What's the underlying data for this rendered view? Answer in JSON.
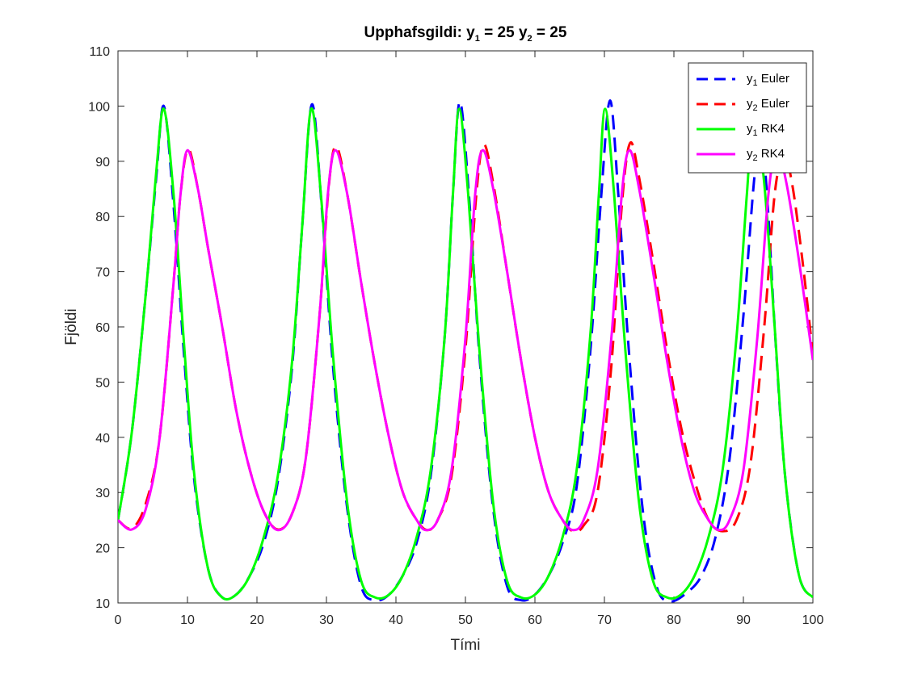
{
  "chart_data": {
    "type": "line",
    "title": "Upphafsgildi: y₁ = 25 y₂ = 25",
    "title_parts": [
      "Upphafsgildi: y",
      "1",
      " = 25 y",
      "2",
      " = 25"
    ],
    "xlabel": "Tími",
    "ylabel": "Fjöldi",
    "xlim": [
      0,
      100
    ],
    "ylim": [
      10,
      110
    ],
    "xticks": [
      0,
      10,
      20,
      30,
      40,
      50,
      60,
      70,
      80,
      90,
      100
    ],
    "yticks": [
      10,
      20,
      30,
      40,
      50,
      60,
      70,
      80,
      90,
      100,
      110
    ],
    "grid": false,
    "legend_position": "top-right",
    "series": [
      {
        "name": "y1 Euler",
        "legend_main": "y",
        "legend_sub": "1",
        "legend_tail": " Euler",
        "color": "#0000ff",
        "style": "dashed",
        "points": [
          [
            0,
            25
          ],
          [
            2,
            41
          ],
          [
            4,
            66
          ],
          [
            5.5,
            87
          ],
          [
            6.6,
            100
          ],
          [
            8,
            82
          ],
          [
            9.5,
            55
          ],
          [
            11,
            32
          ],
          [
            13,
            16
          ],
          [
            15,
            11
          ],
          [
            17,
            11.5
          ],
          [
            19,
            15
          ],
          [
            21,
            21
          ],
          [
            23,
            32
          ],
          [
            25,
            52
          ],
          [
            26.5,
            78
          ],
          [
            27.9,
            100.3
          ],
          [
            29.3,
            82
          ],
          [
            31,
            52
          ],
          [
            33,
            27
          ],
          [
            35,
            13
          ],
          [
            37,
            10.5
          ],
          [
            39,
            11.5
          ],
          [
            41,
            15
          ],
          [
            43,
            21
          ],
          [
            45,
            33
          ],
          [
            47,
            58
          ],
          [
            48.2,
            84
          ],
          [
            49.2,
            100.8
          ],
          [
            50.5,
            84
          ],
          [
            52,
            55
          ],
          [
            54,
            27
          ],
          [
            56,
            13
          ],
          [
            58,
            10.5
          ],
          [
            60,
            11.5
          ],
          [
            62,
            15
          ],
          [
            64,
            21
          ],
          [
            66,
            31
          ],
          [
            68,
            56
          ],
          [
            69.5,
            83
          ],
          [
            70.8,
            101
          ],
          [
            72,
            84
          ],
          [
            73.5,
            56
          ],
          [
            75.5,
            27
          ],
          [
            77.5,
            13
          ],
          [
            79.5,
            10.3
          ],
          [
            82,
            12
          ],
          [
            84,
            15
          ],
          [
            86,
            22
          ],
          [
            88,
            36
          ],
          [
            90,
            62
          ],
          [
            91.5,
            86
          ],
          [
            92.5,
            96
          ],
          [
            93.5,
            82
          ],
          [
            94.5,
            60
          ],
          [
            96,
            33
          ],
          [
            98,
            15
          ],
          [
            100,
            11
          ]
        ]
      },
      {
        "name": "y2 Euler",
        "legend_main": "y",
        "legend_sub": "2",
        "legend_tail": " Euler",
        "color": "#ff0000",
        "style": "dashed",
        "points": [
          [
            0,
            25
          ],
          [
            2,
            23.5
          ],
          [
            4,
            28
          ],
          [
            6,
            40
          ],
          [
            8,
            68
          ],
          [
            9,
            84
          ],
          [
            10.1,
            92.2
          ],
          [
            11.5,
            85
          ],
          [
            13,
            74
          ],
          [
            15,
            60
          ],
          [
            17,
            45
          ],
          [
            19,
            34
          ],
          [
            21,
            26.5
          ],
          [
            23,
            23.3
          ],
          [
            25,
            26
          ],
          [
            27,
            36
          ],
          [
            29,
            62
          ],
          [
            30.3,
            85
          ],
          [
            31.4,
            92.7
          ],
          [
            33,
            84
          ],
          [
            35,
            68
          ],
          [
            37,
            53
          ],
          [
            39,
            40
          ],
          [
            41,
            30
          ],
          [
            43,
            25
          ],
          [
            44.5,
            23.2
          ],
          [
            46,
            25
          ],
          [
            48,
            33
          ],
          [
            50,
            56
          ],
          [
            51.5,
            83
          ],
          [
            52.6,
            93
          ],
          [
            54,
            86
          ],
          [
            56,
            70
          ],
          [
            58,
            54
          ],
          [
            60,
            40
          ],
          [
            62,
            30
          ],
          [
            64,
            25
          ],
          [
            65.5,
            23
          ],
          [
            67,
            24
          ],
          [
            69,
            30
          ],
          [
            71,
            53
          ],
          [
            72.5,
            82
          ],
          [
            73.7,
            93.3
          ],
          [
            75,
            87
          ],
          [
            77,
            72
          ],
          [
            79,
            56
          ],
          [
            81,
            42
          ],
          [
            83,
            32
          ],
          [
            85,
            25
          ],
          [
            87,
            23
          ],
          [
            89,
            25
          ],
          [
            91,
            35
          ],
          [
            93,
            60
          ],
          [
            94.5,
            84
          ],
          [
            95.8,
            91
          ],
          [
            97,
            86
          ],
          [
            98.5,
            72
          ],
          [
            100,
            55
          ]
        ]
      },
      {
        "name": "y1 RK4",
        "legend_main": "y",
        "legend_sub": "1",
        "legend_tail": " RK4",
        "color": "#00ff00",
        "style": "solid",
        "points": [
          [
            0,
            25
          ],
          [
            2,
            41
          ],
          [
            4,
            66
          ],
          [
            5.5,
            88
          ],
          [
            6.6,
            99.5
          ],
          [
            8,
            84
          ],
          [
            9.5,
            57
          ],
          [
            11,
            33
          ],
          [
            13,
            16
          ],
          [
            15,
            11
          ],
          [
            17,
            11.5
          ],
          [
            19,
            15
          ],
          [
            21,
            22
          ],
          [
            23,
            33
          ],
          [
            25,
            53
          ],
          [
            26.5,
            78
          ],
          [
            27.8,
            99.5
          ],
          [
            29.2,
            84
          ],
          [
            31,
            54
          ],
          [
            33,
            28
          ],
          [
            35,
            14
          ],
          [
            37,
            11
          ],
          [
            39,
            11.5
          ],
          [
            41,
            15
          ],
          [
            43,
            22
          ],
          [
            45,
            34
          ],
          [
            47,
            58
          ],
          [
            48.2,
            84
          ],
          [
            49.1,
            99.5
          ],
          [
            50.4,
            84
          ],
          [
            52,
            56
          ],
          [
            54,
            28
          ],
          [
            56,
            14
          ],
          [
            58,
            11
          ],
          [
            60,
            11.5
          ],
          [
            62,
            15
          ],
          [
            64,
            22
          ],
          [
            66,
            34
          ],
          [
            68,
            59
          ],
          [
            69.2,
            84
          ],
          [
            70.1,
            99.5
          ],
          [
            71.4,
            84
          ],
          [
            73,
            56
          ],
          [
            75,
            28
          ],
          [
            77,
            14
          ],
          [
            79,
            11
          ],
          [
            81,
            11.5
          ],
          [
            83,
            15
          ],
          [
            85,
            22
          ],
          [
            87,
            34
          ],
          [
            89,
            58
          ],
          [
            90.5,
            84
          ],
          [
            91.5,
            99
          ],
          [
            93,
            86
          ],
          [
            94.5,
            60
          ],
          [
            96,
            33
          ],
          [
            98,
            15
          ],
          [
            100,
            11
          ]
        ]
      },
      {
        "name": "y2 RK4",
        "legend_main": "y",
        "legend_sub": "2",
        "legend_tail": " RK4",
        "color": "#ff00ff",
        "style": "solid",
        "points": [
          [
            0,
            25
          ],
          [
            2,
            23.3
          ],
          [
            4,
            27
          ],
          [
            6,
            40
          ],
          [
            8,
            68
          ],
          [
            9,
            84
          ],
          [
            10,
            92
          ],
          [
            11.5,
            85
          ],
          [
            13,
            74
          ],
          [
            15,
            60
          ],
          [
            17,
            45
          ],
          [
            19,
            34
          ],
          [
            21,
            26.5
          ],
          [
            23,
            23.2
          ],
          [
            25,
            26
          ],
          [
            27,
            36
          ],
          [
            29,
            62
          ],
          [
            30.2,
            84
          ],
          [
            31.3,
            92
          ],
          [
            33,
            84
          ],
          [
            35,
            68
          ],
          [
            37,
            53
          ],
          [
            39,
            40
          ],
          [
            41,
            30
          ],
          [
            43,
            25
          ],
          [
            44.3,
            23.2
          ],
          [
            46,
            25
          ],
          [
            48,
            34
          ],
          [
            50,
            58
          ],
          [
            51.4,
            84
          ],
          [
            52.5,
            92
          ],
          [
            54,
            85
          ],
          [
            56,
            70
          ],
          [
            58,
            54
          ],
          [
            60,
            40
          ],
          [
            62,
            30
          ],
          [
            64,
            25
          ],
          [
            65.5,
            23.2
          ],
          [
            67,
            25
          ],
          [
            69,
            34
          ],
          [
            71,
            58
          ],
          [
            72.5,
            84
          ],
          [
            73.6,
            92
          ],
          [
            75,
            85
          ],
          [
            77,
            70
          ],
          [
            79,
            54
          ],
          [
            81,
            40
          ],
          [
            83,
            30
          ],
          [
            85,
            25
          ],
          [
            86.5,
            23.2
          ],
          [
            88,
            25
          ],
          [
            90,
            34
          ],
          [
            92,
            58
          ],
          [
            93.6,
            84
          ],
          [
            94.8,
            92
          ],
          [
            96.2,
            86
          ],
          [
            98,
            72
          ],
          [
            100,
            54
          ]
        ]
      }
    ]
  }
}
